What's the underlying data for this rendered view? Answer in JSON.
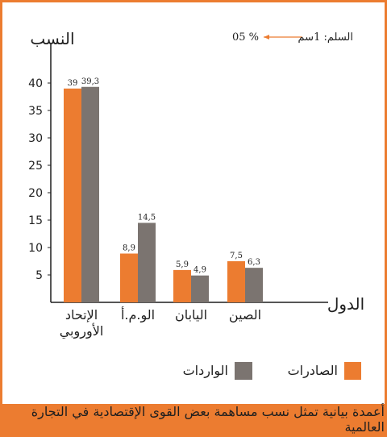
{
  "colors": {
    "exports": "#ec7c30",
    "imports": "#7b7470",
    "frame": "#ec7c30",
    "axis": "#1f1f1f"
  },
  "chart_data": {
    "type": "bar",
    "title": "",
    "ylabel": "النسب",
    "xlabel": "الدول",
    "ylim": [
      0,
      45
    ],
    "yticks": [
      5,
      10,
      15,
      20,
      25,
      30,
      35,
      40
    ],
    "ytick_labels": [
      "5",
      "10",
      "15",
      "20",
      "25",
      "30",
      "35",
      "40"
    ],
    "categories": [
      "الإتحاد الأوروبي",
      "الو.م.أ",
      "اليابان",
      "الصين"
    ],
    "category_lines": [
      [
        "الإتحاد",
        "الأوروبي"
      ],
      [
        "الو.م.أ"
      ],
      [
        "اليابان"
      ],
      [
        "الصين"
      ]
    ],
    "series": [
      {
        "name": "الصادرات",
        "values": [
          39,
          8.9,
          5.9,
          7.5
        ],
        "labels": [
          "39",
          "8,9",
          "5,9",
          "7,5"
        ]
      },
      {
        "name": "الواردات",
        "values": [
          39.3,
          14.5,
          4.9,
          6.3
        ],
        "labels": [
          "39,3",
          "14,5",
          "4,9",
          "6,3"
        ]
      }
    ],
    "legend_position": "bottom",
    "scale_note": {
      "prefix": "السلم: 1سم",
      "value": "05 %"
    }
  },
  "caption": "أعمدة بيانية تمثل نسب مساهمة بعض القوى الإقتصادية في التجارة العالمية"
}
